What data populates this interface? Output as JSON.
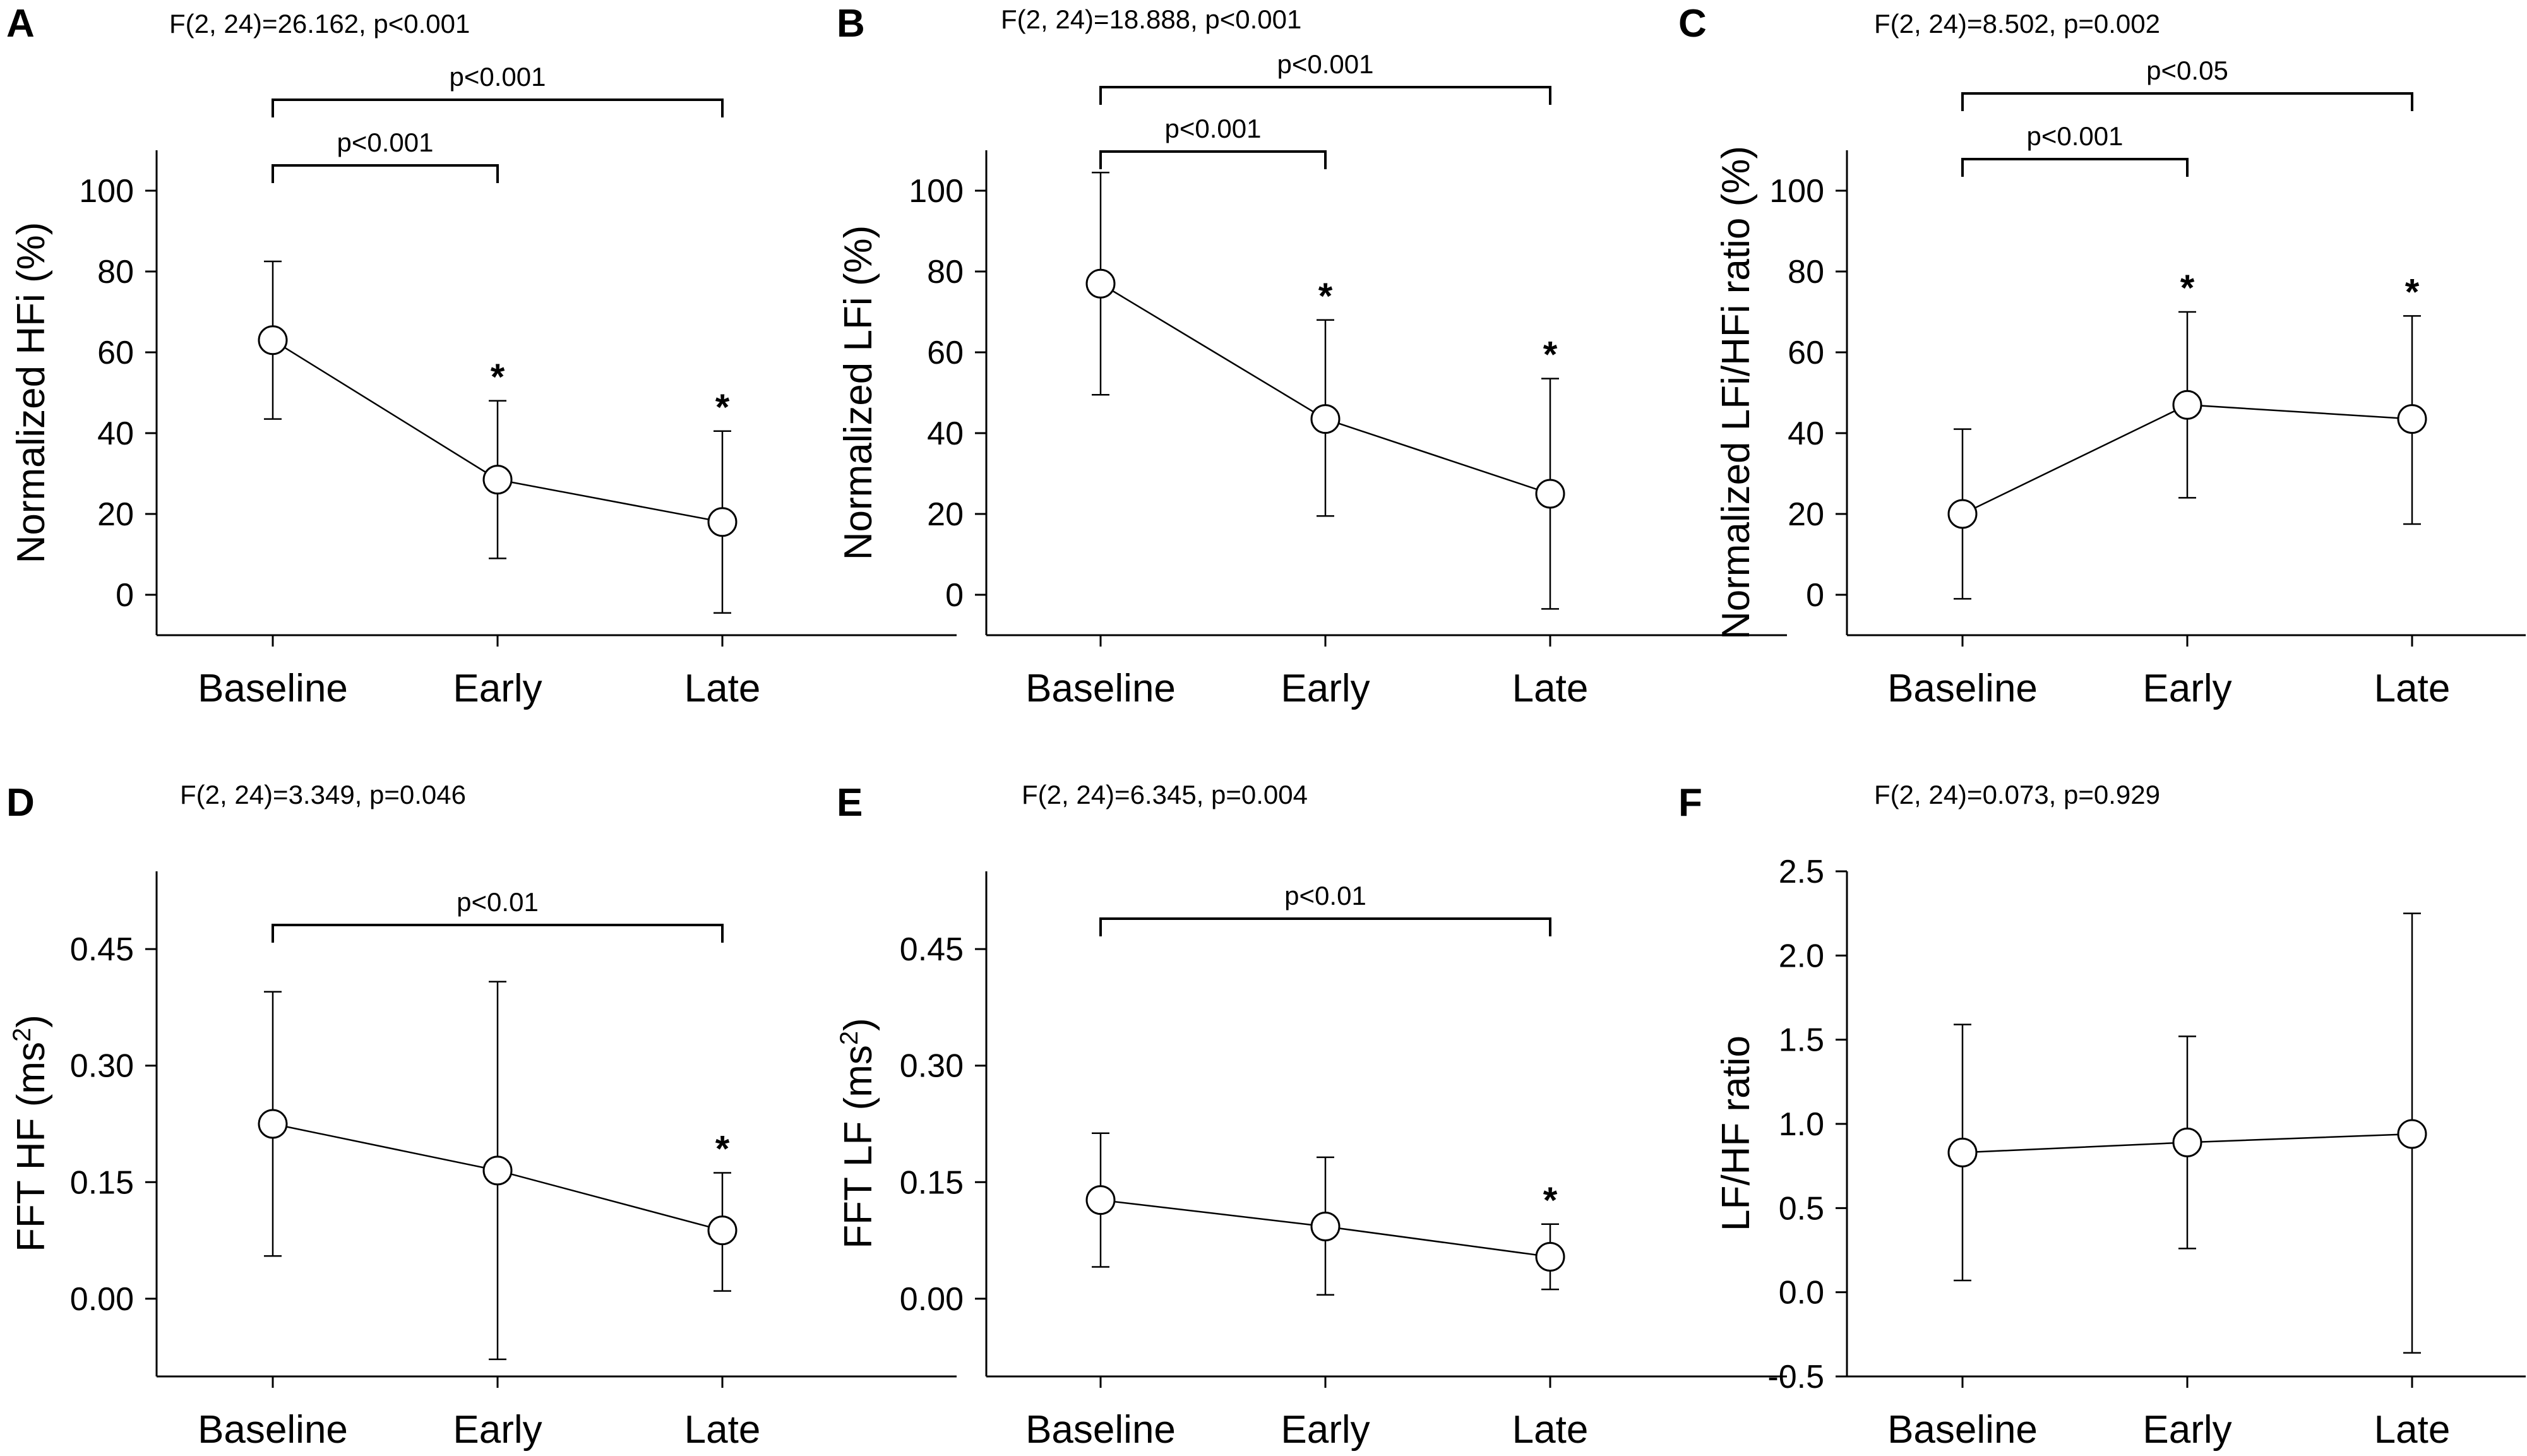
{
  "chart_data": [
    {
      "panel": "A",
      "type": "line",
      "stat_text": "F(2, 24)=26.162, p<0.001",
      "ylabel": "Normalized HFi (%)",
      "ylabel_sup": "",
      "categories": [
        "Baseline",
        "Early",
        "Late"
      ],
      "values": [
        63,
        28.5,
        18
      ],
      "error_upper": [
        82.5,
        48,
        40.5
      ],
      "error_lower": [
        43.5,
        9,
        -4.5
      ],
      "ylim": [
        -10,
        110
      ],
      "yticks": [
        0,
        20,
        40,
        60,
        80,
        100
      ],
      "ytick_labels": [
        "0",
        "20",
        "40",
        "60",
        "80",
        "100"
      ],
      "significance_markers": [
        "",
        "*",
        "*"
      ],
      "brackets": [
        {
          "from": 0,
          "to": 1,
          "label": "p<0.001"
        },
        {
          "from": 0,
          "to": 2,
          "label": "p<0.001"
        }
      ]
    },
    {
      "panel": "B",
      "type": "line",
      "stat_text": "F(2, 24)=18.888, p<0.001",
      "ylabel": "Normalized LFi (%)",
      "ylabel_sup": "",
      "categories": [
        "Baseline",
        "Early",
        "Late"
      ],
      "values": [
        77,
        43.5,
        25
      ],
      "error_upper": [
        104.5,
        68,
        53.5
      ],
      "error_lower": [
        49.5,
        19.5,
        -3.5
      ],
      "ylim": [
        -10,
        110
      ],
      "yticks": [
        0,
        20,
        40,
        60,
        80,
        100
      ],
      "ytick_labels": [
        "0",
        "20",
        "40",
        "60",
        "80",
        "100"
      ],
      "significance_markers": [
        "",
        "*",
        "*"
      ],
      "brackets": [
        {
          "from": 0,
          "to": 1,
          "label": "p<0.001"
        },
        {
          "from": 0,
          "to": 2,
          "label": "p<0.001"
        }
      ]
    },
    {
      "panel": "C",
      "type": "line",
      "stat_text": "F(2, 24)=8.502, p=0.002",
      "ylabel": "Normalized LFi/HFi ratio (%)",
      "ylabel_sup": "",
      "categories": [
        "Baseline",
        "Early",
        "Late"
      ],
      "values": [
        20,
        47,
        43.5
      ],
      "error_upper": [
        41,
        70,
        69
      ],
      "error_lower": [
        -1,
        24,
        17.5
      ],
      "ylim": [
        -10,
        110
      ],
      "yticks": [
        0,
        20,
        40,
        60,
        80,
        100
      ],
      "ytick_labels": [
        "0",
        "20",
        "40",
        "60",
        "80",
        "100"
      ],
      "significance_markers": [
        "",
        "*",
        "*"
      ],
      "brackets": [
        {
          "from": 0,
          "to": 1,
          "label": "p<0.001"
        },
        {
          "from": 0,
          "to": 2,
          "label": "p<0.05"
        }
      ]
    },
    {
      "panel": "D",
      "type": "line",
      "stat_text": "F(2, 24)=3.349, p=0.046",
      "ylabel": "FFT HF (ms",
      "ylabel_sup": "2",
      "ylabel_end": ")",
      "categories": [
        "Baseline",
        "Early",
        "Late"
      ],
      "values": [
        0.225,
        0.165,
        0.088
      ],
      "error_upper": [
        0.395,
        0.408,
        0.162
      ],
      "error_lower": [
        0.055,
        -0.078,
        0.01
      ],
      "ylim": [
        -0.1,
        0.55
      ],
      "yticks": [
        0,
        0.15,
        0.3,
        0.45
      ],
      "ytick_labels": [
        "0.00",
        "0.15",
        "0.30",
        "0.45"
      ],
      "significance_markers": [
        "",
        "",
        "*"
      ],
      "brackets": [
        {
          "from": 0,
          "to": 2,
          "label": "p<0.01"
        }
      ]
    },
    {
      "panel": "E",
      "type": "line",
      "stat_text": "F(2, 24)=6.345, p=0.004",
      "ylabel": "FFT LF (ms",
      "ylabel_sup": "2",
      "ylabel_end": ")",
      "categories": [
        "Baseline",
        "Early",
        "Late"
      ],
      "values": [
        0.127,
        0.093,
        0.054
      ],
      "error_upper": [
        0.213,
        0.182,
        0.096
      ],
      "error_lower": [
        0.041,
        0.005,
        0.012
      ],
      "ylim": [
        -0.1,
        0.55
      ],
      "yticks": [
        0,
        0.15,
        0.3,
        0.45
      ],
      "ytick_labels": [
        "0.00",
        "0.15",
        "0.30",
        "0.45"
      ],
      "significance_markers": [
        "",
        "",
        "*"
      ],
      "brackets": [
        {
          "from": 0,
          "to": 2,
          "label": "p<0.01"
        }
      ]
    },
    {
      "panel": "F",
      "type": "line",
      "stat_text": "F(2, 24)=0.073, p=0.929",
      "ylabel": "LF/HF ratio",
      "ylabel_sup": "",
      "categories": [
        "Baseline",
        "Early",
        "Late"
      ],
      "values": [
        0.83,
        0.89,
        0.94
      ],
      "error_upper": [
        1.59,
        1.52,
        2.25
      ],
      "error_lower": [
        0.07,
        0.26,
        -0.36
      ],
      "ylim": [
        -0.5,
        2.5
      ],
      "yticks": [
        -0.5,
        0,
        0.5,
        1,
        1.5,
        2,
        2.5
      ],
      "ytick_labels": [
        "-0.5",
        "0.0",
        "0.5",
        "1.0",
        "1.5",
        "2.0",
        "2.5"
      ],
      "significance_markers": [
        "",
        "",
        ""
      ],
      "brackets": []
    }
  ]
}
